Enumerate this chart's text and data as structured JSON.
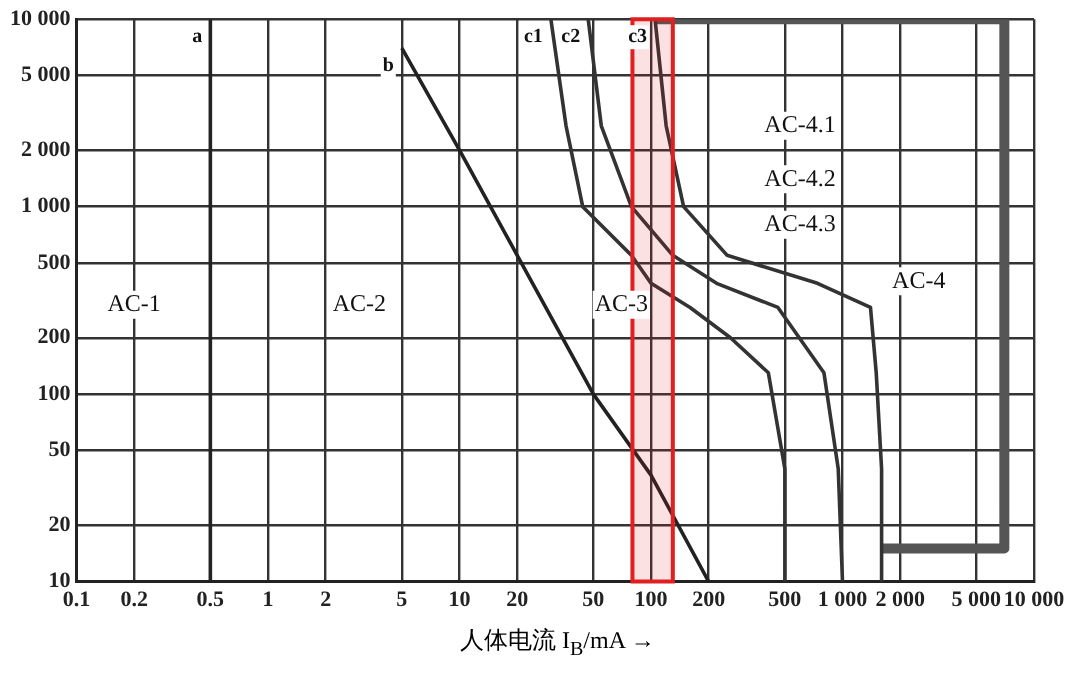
{
  "chart_data": {
    "type": "line",
    "xlabel": "人体电流 I$_{B}$/mA →",
    "log": "xy",
    "grid": true,
    "legend": false,
    "marker": "none",
    "line_style": "solid",
    "xlim": [
      0.1,
      10000
    ],
    "ylim": [
      10,
      10000
    ],
    "xticks": [
      0.1,
      0.2,
      0.5,
      1,
      2,
      5,
      10,
      20,
      50,
      100,
      200,
      500,
      {
        "value": 1000,
        "label": "1 000"
      },
      {
        "value": 2000,
        "label": "2 000"
      },
      {
        "value": 5000,
        "label": "5 000"
      },
      {
        "value": 10000,
        "label": "10 000"
      }
    ],
    "yticks": [
      10,
      20,
      50,
      100,
      200,
      500,
      {
        "value": 1000,
        "label": "1 000"
      },
      {
        "value": 2000,
        "label": "2 000"
      },
      {
        "value": 5000,
        "label": "5 000"
      },
      {
        "value": 10000,
        "label": "10 000"
      }
    ],
    "series": [
      {
        "name": "a",
        "color": "#222222",
        "x": [
          0.5,
          0.5
        ],
        "values": [
          10,
          10000
        ]
      },
      {
        "name": "b",
        "color": "#222222",
        "x": [
          5,
          10,
          50,
          100,
          200
        ],
        "values": [
          7000,
          2000,
          100,
          37,
          10
        ]
      },
      {
        "name": "c1",
        "color": "#333333",
        "x": [
          30,
          36,
          44,
          79,
          100,
          160,
          260,
          410,
          500,
          500
        ],
        "values": [
          10000,
          2700,
          1000,
          550,
          390,
          290,
          200,
          130,
          40,
          10
        ]
      },
      {
        "name": "c2",
        "color": "#333333",
        "x": [
          47,
          55,
          79,
          130,
          220,
          460,
          800,
          950,
          1000
        ],
        "values": [
          10000,
          2700,
          1000,
          550,
          390,
          290,
          130,
          40,
          10
        ]
      },
      {
        "name": "c3",
        "color": "#333333",
        "x": [
          105,
          120,
          148,
          250,
          740,
          1400,
          1500,
          1600,
          1600
        ],
        "values": [
          10000,
          2700,
          1000,
          550,
          390,
          290,
          130,
          40,
          10
        ]
      },
      {
        "color": "#555555",
        "x": [
          105,
          7000,
          7000,
          1600
        ],
        "values": [
          10000,
          10000,
          15,
          15
        ]
      }
    ],
    "bands": [
      {
        "axis": "x",
        "from": 80,
        "to": 130,
        "color": "#e02020"
      }
    ],
    "annotations": [
      {
        "text": "AC-1",
        "x": 0.2,
        "y": 300
      },
      {
        "text": "AC-2",
        "x": 3,
        "y": 300
      },
      {
        "text": "AC-3",
        "x": 70,
        "y": 300
      },
      {
        "text": "AC-4",
        "x": 2500,
        "y": 400
      },
      {
        "text": "AC-4.1",
        "x": 600,
        "y": 2700
      },
      {
        "text": "AC-4.2",
        "x": 600,
        "y": 1400
      },
      {
        "text": "AC-4.3",
        "x": 600,
        "y": 800
      }
    ]
  }
}
